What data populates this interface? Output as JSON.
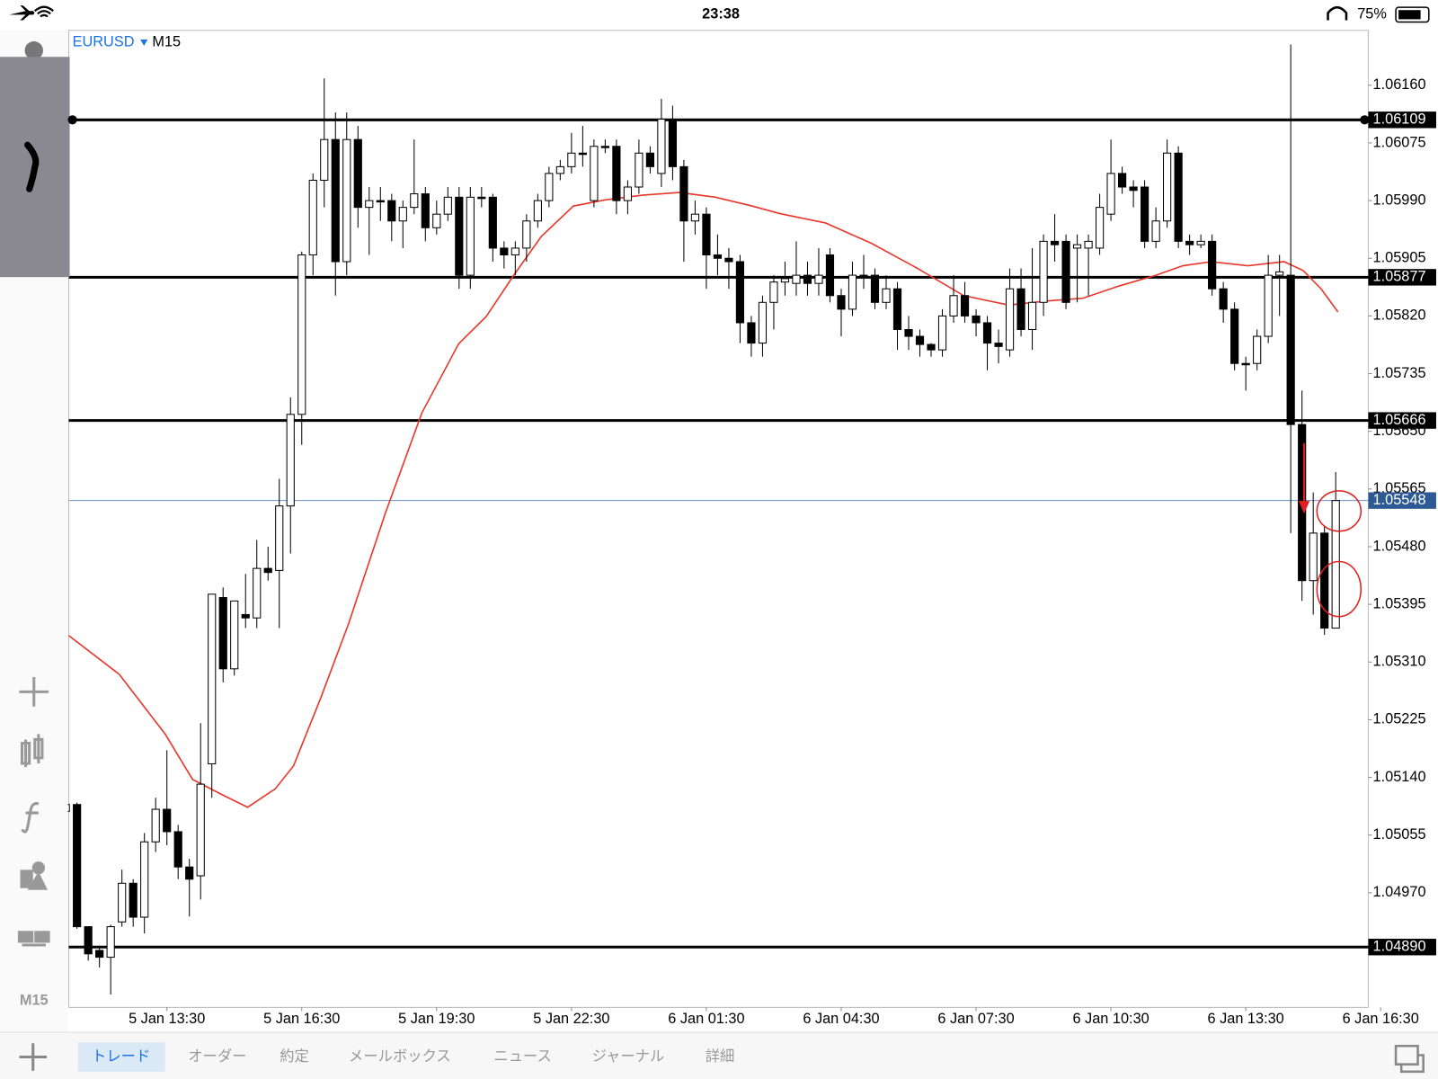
{
  "status_bar": {
    "time": "23:38",
    "battery": "75%"
  },
  "chart_data": {
    "type": "candlestick",
    "symbol": "EURUSD",
    "timeframe": "M15",
    "up_color": "#ffffff",
    "down_color": "#000000",
    "ohlc": [
      [
        1.0509,
        1.0513,
        1.0506,
        1.051
      ],
      [
        1.051,
        1.05103,
        1.04917,
        1.0492
      ],
      [
        1.0492,
        1.0492,
        1.0487,
        1.0488
      ],
      [
        1.04885,
        1.0489,
        1.0486,
        1.04875
      ],
      [
        1.04875,
        1.04923,
        1.0482,
        1.0492
      ],
      [
        1.04927,
        1.05004,
        1.0492,
        1.04984
      ],
      [
        1.04984,
        1.0499,
        1.0492,
        1.04934
      ],
      [
        1.04934,
        1.05058,
        1.0491,
        1.05045
      ],
      [
        1.05045,
        1.0511,
        1.0503,
        1.05093
      ],
      [
        1.05093,
        1.0518,
        1.0504,
        1.0506
      ],
      [
        1.0506,
        1.0507,
        1.0499,
        1.05008
      ],
      [
        1.05008,
        1.0502,
        1.04935,
        1.0499
      ],
      [
        1.04995,
        1.0522,
        1.0496,
        1.0513
      ],
      [
        1.0516,
        1.0541,
        1.0511,
        1.0541
      ],
      [
        1.05405,
        1.0542,
        1.0528,
        1.053
      ],
      [
        1.053,
        1.054,
        1.0529,
        1.054
      ],
      [
        1.0538,
        1.0544,
        1.0536,
        1.05375
      ],
      [
        1.05375,
        1.0549,
        1.0536,
        1.05448
      ],
      [
        1.05448,
        1.0548,
        1.0543,
        1.05442
      ],
      [
        1.05445,
        1.0558,
        1.0536,
        1.0554
      ],
      [
        1.0554,
        1.057,
        1.0547,
        1.05675
      ],
      [
        1.05675,
        1.05915,
        1.0563,
        1.0591
      ],
      [
        1.0591,
        1.0603,
        1.0588,
        1.0602
      ],
      [
        1.0602,
        1.0617,
        1.0598,
        1.0608
      ],
      [
        1.0608,
        1.0612,
        1.0585,
        1.059
      ],
      [
        1.059,
        1.0612,
        1.0588,
        1.0608
      ],
      [
        1.0608,
        1.061,
        1.0595,
        1.0598
      ],
      [
        1.0598,
        1.0601,
        1.0591,
        1.0599
      ],
      [
        1.0599,
        1.0601,
        1.0596,
        1.05988
      ],
      [
        1.0599,
        1.06,
        1.0593,
        1.0596
      ],
      [
        1.0596,
        1.0599,
        1.0592,
        1.0598
      ],
      [
        1.0598,
        1.0608,
        1.0597,
        1.06
      ],
      [
        1.06,
        1.0601,
        1.0593,
        1.0595
      ],
      [
        1.0595,
        1.0599,
        1.0594,
        1.0597
      ],
      [
        1.0597,
        1.0601,
        1.0596,
        1.05995
      ],
      [
        1.05995,
        1.0601,
        1.0586,
        1.0588
      ],
      [
        1.0588,
        1.0601,
        1.0586,
        1.05995
      ],
      [
        1.05995,
        1.0601,
        1.0598,
        1.05993
      ],
      [
        1.05995,
        1.06,
        1.059,
        1.0592
      ],
      [
        1.0592,
        1.0593,
        1.0589,
        1.0591
      ],
      [
        1.0591,
        1.0593,
        1.0588,
        1.0592
      ],
      [
        1.0592,
        1.0597,
        1.059,
        1.0596
      ],
      [
        1.0596,
        1.06,
        1.0595,
        1.0599
      ],
      [
        1.0599,
        1.0604,
        1.0598,
        1.0603
      ],
      [
        1.0603,
        1.0605,
        1.0602,
        1.0604
      ],
      [
        1.0604,
        1.0609,
        1.0603,
        1.0606
      ],
      [
        1.0606,
        1.061,
        1.0604,
        1.06058
      ],
      [
        1.0599,
        1.0608,
        1.0598,
        1.0607
      ],
      [
        1.0607,
        1.0608,
        1.0606,
        1.06068
      ],
      [
        1.0607,
        1.0608,
        1.0597,
        1.0599
      ],
      [
        1.0599,
        1.0602,
        1.0597,
        1.0601
      ],
      [
        1.0601,
        1.0608,
        1.06,
        1.0606
      ],
      [
        1.0606,
        1.0607,
        1.0603,
        1.0604
      ],
      [
        1.0603,
        1.0614,
        1.0601,
        1.0611
      ],
      [
        1.0611,
        1.0613,
        1.0602,
        1.0604
      ],
      [
        1.0604,
        1.0605,
        1.059,
        1.0596
      ],
      [
        1.0596,
        1.0599,
        1.0594,
        1.0597
      ],
      [
        1.0597,
        1.0598,
        1.0586,
        1.0591
      ],
      [
        1.0591,
        1.0594,
        1.0588,
        1.05905
      ],
      [
        1.05905,
        1.0592,
        1.0586,
        1.059
      ],
      [
        1.059,
        1.0591,
        1.0578,
        1.0581
      ],
      [
        1.0581,
        1.0582,
        1.0576,
        1.0578
      ],
      [
        1.0578,
        1.0585,
        1.0576,
        1.0584
      ],
      [
        1.0584,
        1.0588,
        1.058,
        1.0587
      ],
      [
        1.0587,
        1.059,
        1.0585,
        1.05875
      ],
      [
        1.05868,
        1.0593,
        1.0585,
        1.0588
      ],
      [
        1.0588,
        1.059,
        1.0585,
        1.05868
      ],
      [
        1.05868,
        1.0592,
        1.0585,
        1.0588
      ],
      [
        1.0591,
        1.0592,
        1.0584,
        1.0585
      ],
      [
        1.0585,
        1.0586,
        1.0579,
        1.0583
      ],
      [
        1.0583,
        1.059,
        1.0582,
        1.0588
      ],
      [
        1.0588,
        1.0591,
        1.0586,
        1.05877
      ],
      [
        1.0588,
        1.0589,
        1.0583,
        1.0584
      ],
      [
        1.0584,
        1.0588,
        1.0583,
        1.0586
      ],
      [
        1.0586,
        1.0587,
        1.0577,
        1.058
      ],
      [
        1.058,
        1.0582,
        1.0577,
        1.0579
      ],
      [
        1.0579,
        1.058,
        1.0576,
        1.05778
      ],
      [
        1.05778,
        1.0578,
        1.0576,
        1.0577
      ],
      [
        1.0577,
        1.0583,
        1.0576,
        1.0582
      ],
      [
        1.0582,
        1.0588,
        1.0581,
        1.0585
      ],
      [
        1.0585,
        1.0587,
        1.0581,
        1.0582
      ],
      [
        1.0582,
        1.0583,
        1.0579,
        1.0581
      ],
      [
        1.0581,
        1.0582,
        1.0574,
        1.0578
      ],
      [
        1.0578,
        1.058,
        1.0575,
        1.05775
      ],
      [
        1.0577,
        1.0589,
        1.0576,
        1.0586
      ],
      [
        1.0586,
        1.0589,
        1.0579,
        1.058
      ],
      [
        1.058,
        1.0592,
        1.0577,
        1.0584
      ],
      [
        1.0584,
        1.0594,
        1.0582,
        1.0593
      ],
      [
        1.0593,
        1.0597,
        1.059,
        1.05925
      ],
      [
        1.0593,
        1.0594,
        1.0583,
        1.0584
      ],
      [
        1.0592,
        1.0594,
        1.0584,
        1.05925
      ],
      [
        1.0592,
        1.0594,
        1.0585,
        1.0593
      ],
      [
        1.0592,
        1.06,
        1.0591,
        1.0598
      ],
      [
        1.0597,
        1.0608,
        1.0596,
        1.0603
      ],
      [
        1.0603,
        1.0604,
        1.06,
        1.0601
      ],
      [
        1.0601,
        1.0602,
        1.0598,
        1.06005
      ],
      [
        1.0601,
        1.0602,
        1.0592,
        1.0593
      ],
      [
        1.0593,
        1.0598,
        1.0592,
        1.0596
      ],
      [
        1.0596,
        1.0608,
        1.0595,
        1.0606
      ],
      [
        1.0606,
        1.0607,
        1.0592,
        1.0593
      ],
      [
        1.0593,
        1.0594,
        1.0591,
        1.05925
      ],
      [
        1.05925,
        1.0594,
        1.0592,
        1.0593
      ],
      [
        1.0593,
        1.0594,
        1.0585,
        1.0586
      ],
      [
        1.0586,
        1.0587,
        1.0581,
        1.0583
      ],
      [
        1.0583,
        1.0584,
        1.0574,
        1.0575
      ],
      [
        1.0575,
        1.0576,
        1.0571,
        1.05748
      ],
      [
        1.0575,
        1.058,
        1.0574,
        1.0579
      ],
      [
        1.0579,
        1.0591,
        1.0578,
        1.0588
      ],
      [
        1.0588,
        1.0591,
        1.0582,
        1.05885
      ],
      [
        1.0588,
        1.0622,
        1.055,
        1.0566
      ],
      [
        1.0566,
        1.0571,
        1.054,
        1.0543
      ],
      [
        1.0543,
        1.0556,
        1.0538,
        1.055
      ],
      [
        1.055,
        1.0551,
        1.0535,
        1.0536
      ],
      [
        1.0536,
        1.0559,
        1.0536,
        1.05548
      ]
    ],
    "moving_average": {
      "color": "#e8372b",
      "x": [
        0.27,
        4.76,
        8.84,
        11.29,
        13.73,
        16.18,
        18.63,
        20.27,
        22.71,
        25.16,
        28.43,
        31.69,
        34.96,
        37.41,
        39.86,
        42.31,
        45.16,
        48.0,
        51.3,
        54.6,
        57.8,
        61.1,
        63.5,
        67.6,
        71.7,
        75.8,
        79.9,
        83.9,
        87.2,
        90.5,
        93.7,
        97.0,
        99.4,
        101.9,
        105.2,
        108.4,
        110.1,
        111.7,
        113.2
      ],
      "values": [
        1.05349,
        1.05292,
        1.05204,
        1.05137,
        1.05116,
        1.05096,
        1.05123,
        1.05157,
        1.05258,
        1.05366,
        1.05529,
        1.05677,
        1.05779,
        1.05819,
        1.0588,
        1.05937,
        1.05982,
        1.05991,
        1.05998,
        1.06002,
        1.05995,
        1.05982,
        1.05971,
        1.05957,
        1.05927,
        1.0589,
        1.0585,
        1.05836,
        1.05842,
        1.05846,
        1.05864,
        1.0588,
        1.05894,
        1.059,
        1.05894,
        1.059,
        1.05887,
        1.0586,
        1.05826
      ]
    },
    "levels": [
      1.06109,
      1.05877,
      1.05666,
      {
        "value": 1.0489,
        "label": "1.04890"
      }
    ],
    "current_price": 1.05548,
    "xlim": [
      0.27,
      115.9
    ],
    "ylim": [
      1.04801,
      1.06241
    ],
    "yticks": [
      {
        "value": 1.0616,
        "label": "1.06160"
      },
      1.06075,
      {
        "value": 1.0599,
        "label": "1.05990"
      },
      1.05905,
      {
        "value": 1.0582,
        "label": "1.05820"
      },
      1.05735,
      {
        "value": 1.0565,
        "label": "1.05650"
      },
      1.05565,
      {
        "value": 1.0548,
        "label": "1.05480"
      },
      1.05395,
      {
        "value": 1.0531,
        "label": "1.05310"
      },
      1.05225,
      {
        "value": 1.0514,
        "label": "1.05140"
      },
      1.05055,
      {
        "value": 1.0497,
        "label": "1.04970"
      }
    ],
    "xticks": [
      {
        "value": 9,
        "label": "5 Jan 13:30"
      },
      {
        "value": 21,
        "label": "5 Jan 16:30"
      },
      {
        "value": 33,
        "label": "5 Jan 19:30"
      },
      {
        "value": 45,
        "label": "5 Jan 22:30"
      },
      {
        "value": 57,
        "label": "6 Jan 01:30"
      },
      {
        "value": 69,
        "label": "6 Jan 04:30"
      },
      {
        "value": 81,
        "label": "6 Jan 07:30"
      },
      {
        "value": 93,
        "label": "6 Jan 10:30"
      },
      {
        "value": 105,
        "label": "6 Jan 13:30"
      },
      {
        "value": 117,
        "label": "6 Jan 16:30"
      }
    ]
  },
  "toolbar": {
    "timeframe": "M15"
  },
  "tabs": [
    "トレード",
    "オーダー",
    "約定",
    "メールボックス",
    "ニュース",
    "ジャーナル",
    "詳細"
  ]
}
